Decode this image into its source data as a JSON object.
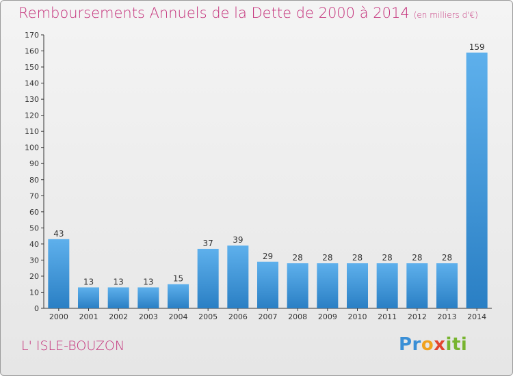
{
  "title": "Remboursements Annuels de la Dette de 2000 à 2014",
  "unit_label": "(en milliers d'€)",
  "commune": "L' ISLE-BOUZON",
  "logo_text": "Proxiti",
  "colors": {
    "title": "#c4307a",
    "bar_light": "#5eb0ec",
    "bar_dark": "#2a7fc4"
  },
  "chart_data": {
    "type": "bar",
    "title": "Remboursements Annuels de la Dette de 2000 à 2014",
    "xlabel": "",
    "ylabel": "",
    "categories": [
      "2000",
      "2001",
      "2002",
      "2003",
      "2004",
      "2005",
      "2006",
      "2007",
      "2008",
      "2009",
      "2010",
      "2011",
      "2012",
      "2013",
      "2014"
    ],
    "values": [
      43,
      13,
      13,
      13,
      15,
      37,
      39,
      29,
      28,
      28,
      28,
      28,
      28,
      28,
      159
    ],
    "ylim": [
      0,
      170
    ],
    "yticks": [
      0,
      10,
      20,
      30,
      40,
      50,
      60,
      70,
      80,
      90,
      100,
      110,
      120,
      130,
      140,
      150,
      160,
      170
    ],
    "grid": false,
    "legend": "none"
  }
}
